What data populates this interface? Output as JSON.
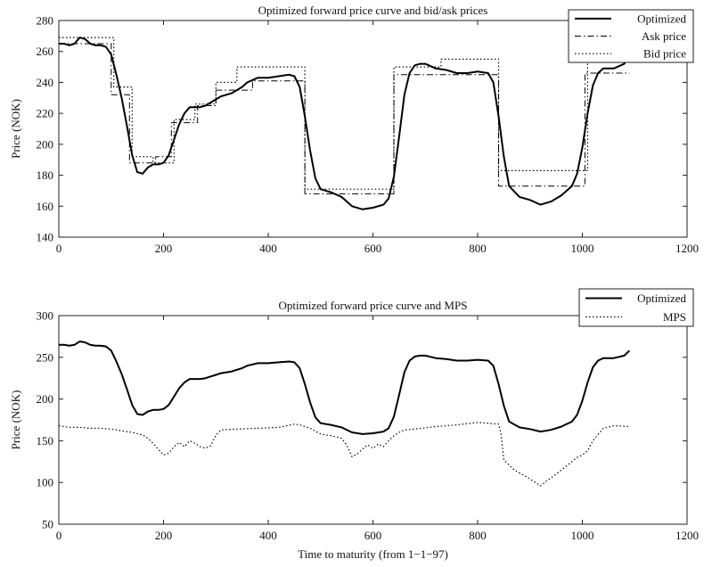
{
  "chart_data": [
    {
      "type": "line",
      "title": "Optimized forward price curve and bid/ask prices",
      "xlabel": "",
      "ylabel": "Price (NOK)",
      "xlim": [
        0,
        1200
      ],
      "ylim": [
        140,
        280
      ],
      "xticks": [
        0,
        200,
        400,
        600,
        800,
        1000,
        1200
      ],
      "yticks": [
        140,
        160,
        180,
        200,
        220,
        240,
        260,
        280
      ],
      "grid": false,
      "legend_position": "top-right",
      "series": [
        {
          "name": "Optimized",
          "style": "solid",
          "color": "#000000",
          "x": [
            0,
            10,
            20,
            30,
            40,
            50,
            60,
            70,
            80,
            90,
            100,
            110,
            120,
            130,
            140,
            150,
            160,
            170,
            180,
            190,
            200,
            210,
            220,
            230,
            240,
            250,
            260,
            270,
            280,
            290,
            300,
            310,
            320,
            330,
            340,
            350,
            360,
            380,
            400,
            420,
            440,
            450,
            460,
            470,
            480,
            490,
            500,
            520,
            540,
            560,
            580,
            600,
            620,
            630,
            640,
            650,
            660,
            670,
            680,
            690,
            700,
            720,
            740,
            760,
            780,
            800,
            820,
            830,
            840,
            850,
            860,
            880,
            900,
            920,
            940,
            960,
            980,
            990,
            1000,
            1010,
            1020,
            1030,
            1040,
            1060,
            1080,
            1090
          ],
          "y": [
            265,
            265,
            264,
            265,
            269,
            268,
            265,
            264,
            264,
            263,
            258,
            245,
            230,
            212,
            193,
            182,
            181,
            185,
            187,
            187,
            188,
            193,
            203,
            213,
            220,
            224,
            224,
            224,
            225,
            227,
            229,
            231,
            232,
            233,
            235,
            237,
            240,
            243,
            243,
            244,
            245,
            244,
            237,
            218,
            196,
            178,
            171,
            169,
            166,
            160,
            158,
            159,
            161,
            165,
            179,
            205,
            232,
            246,
            251,
            252,
            252,
            249,
            248,
            246,
            246,
            247,
            246,
            240,
            218,
            192,
            173,
            166,
            164,
            161,
            163,
            167,
            173,
            181,
            198,
            220,
            238,
            246,
            249,
            249,
            252,
            258
          ]
        },
        {
          "name": "Ask price",
          "style": "dashdot",
          "color": "#000000",
          "x": [
            0,
            100,
            100,
            135,
            135,
            185,
            185,
            215,
            215,
            265,
            265,
            300,
            300,
            370,
            370,
            470,
            470,
            640,
            640,
            840,
            840,
            1005,
            1005,
            1090
          ],
          "y": [
            265,
            265,
            232,
            232,
            188,
            188,
            192,
            192,
            214,
            214,
            225,
            225,
            235,
            235,
            241,
            241,
            168,
            168,
            245,
            245,
            173,
            173,
            246,
            246
          ]
        },
        {
          "name": "Bid price",
          "style": "dotted",
          "color": "#000000",
          "x": [
            0,
            105,
            105,
            140,
            140,
            180,
            180,
            220,
            220,
            260,
            260,
            300,
            300,
            340,
            340,
            470,
            470,
            640,
            640,
            730,
            730,
            840,
            840,
            1010,
            1010,
            1090
          ],
          "y": [
            269,
            269,
            237,
            237,
            192,
            192,
            188,
            188,
            216,
            216,
            226,
            226,
            240,
            240,
            250,
            250,
            171,
            171,
            250,
            250,
            255,
            255,
            183,
            183,
            255,
            255
          ]
        }
      ]
    },
    {
      "type": "line",
      "title": "Optimized forward price curve and MPS",
      "xlabel": "Time to maturity (from 1−1−97)",
      "ylabel": "Price (NOK)",
      "xlim": [
        0,
        1200
      ],
      "ylim": [
        50,
        300
      ],
      "xticks": [
        0,
        200,
        400,
        600,
        800,
        1000,
        1200
      ],
      "yticks": [
        50,
        100,
        150,
        200,
        250,
        300
      ],
      "grid": false,
      "legend_position": "top-right",
      "series": [
        {
          "name": "Optimized",
          "style": "solid",
          "color": "#000000",
          "x": [
            0,
            10,
            20,
            30,
            40,
            50,
            60,
            70,
            80,
            90,
            100,
            110,
            120,
            130,
            140,
            150,
            160,
            170,
            180,
            190,
            200,
            210,
            220,
            230,
            240,
            250,
            260,
            270,
            280,
            290,
            300,
            310,
            320,
            330,
            340,
            350,
            360,
            380,
            400,
            420,
            440,
            450,
            460,
            470,
            480,
            490,
            500,
            520,
            540,
            560,
            580,
            600,
            620,
            630,
            640,
            650,
            660,
            670,
            680,
            690,
            700,
            720,
            740,
            760,
            780,
            800,
            820,
            830,
            840,
            850,
            860,
            880,
            900,
            920,
            940,
            960,
            980,
            990,
            1000,
            1010,
            1020,
            1030,
            1040,
            1060,
            1080,
            1090
          ],
          "y": [
            265,
            265,
            264,
            265,
            269,
            268,
            265,
            264,
            264,
            263,
            258,
            245,
            230,
            212,
            193,
            182,
            181,
            185,
            187,
            187,
            188,
            193,
            203,
            213,
            220,
            224,
            224,
            224,
            225,
            227,
            229,
            231,
            232,
            233,
            235,
            237,
            240,
            243,
            243,
            244,
            245,
            244,
            237,
            218,
            196,
            178,
            171,
            169,
            166,
            160,
            158,
            159,
            161,
            165,
            179,
            205,
            232,
            246,
            251,
            252,
            252,
            249,
            248,
            246,
            246,
            247,
            246,
            240,
            218,
            192,
            173,
            166,
            164,
            161,
            163,
            167,
            173,
            181,
            198,
            220,
            238,
            246,
            249,
            249,
            252,
            258
          ]
        },
        {
          "name": "MPS",
          "style": "dotted",
          "color": "#000000",
          "x": [
            0,
            20,
            40,
            60,
            80,
            100,
            120,
            140,
            160,
            170,
            180,
            190,
            200,
            210,
            220,
            230,
            240,
            250,
            260,
            270,
            280,
            290,
            300,
            310,
            340,
            380,
            420,
            450,
            460,
            480,
            500,
            520,
            540,
            550,
            560,
            570,
            580,
            590,
            600,
            610,
            620,
            630,
            640,
            650,
            660,
            680,
            720,
            760,
            800,
            840,
            845,
            850,
            870,
            890,
            910,
            920,
            930,
            950,
            970,
            990,
            1000,
            1010,
            1020,
            1040,
            1060,
            1090
          ],
          "y": [
            168,
            166,
            166,
            165,
            165,
            164,
            162,
            160,
            157,
            153,
            147,
            140,
            133,
            135,
            143,
            148,
            143,
            150,
            147,
            143,
            141,
            144,
            157,
            163,
            164,
            165,
            166,
            170,
            169,
            165,
            158,
            156,
            153,
            145,
            131,
            134,
            140,
            145,
            141,
            146,
            143,
            150,
            156,
            160,
            163,
            164,
            167,
            169,
            172,
            170,
            157,
            127,
            115,
            108,
            100,
            96,
            101,
            110,
            120,
            130,
            133,
            138,
            150,
            165,
            168,
            167
          ]
        }
      ]
    }
  ]
}
